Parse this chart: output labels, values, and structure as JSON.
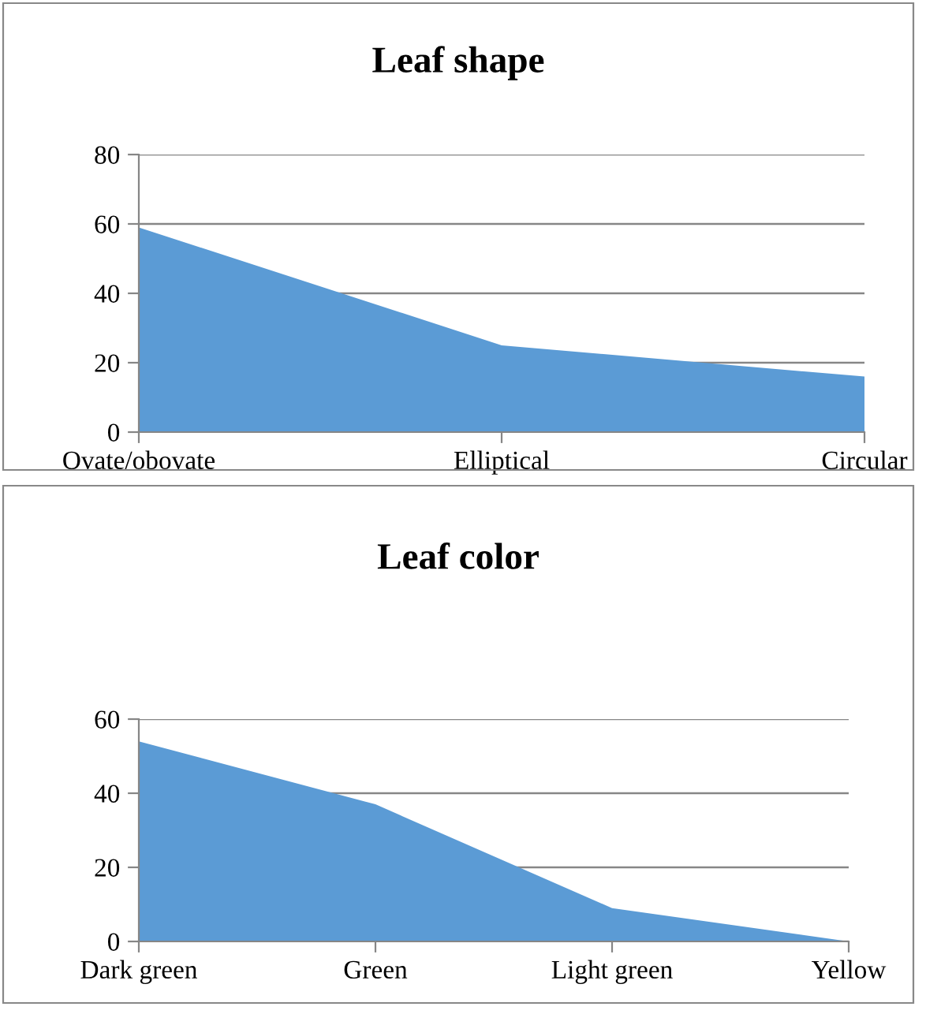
{
  "chart_data": [
    {
      "type": "area",
      "title": "Leaf shape",
      "categories": [
        "Ovate/obovate",
        "Elliptical",
        "Circular"
      ],
      "values": [
        59,
        25,
        16
      ],
      "color": "#5b9bd5",
      "ylim": [
        0,
        80
      ],
      "yticks": [
        0,
        20,
        40,
        60,
        80
      ],
      "grid": "y",
      "legend": false
    },
    {
      "type": "area",
      "title": "Leaf color",
      "categories": [
        "Dark green",
        "Green",
        "Light green",
        "Yellow"
      ],
      "values": [
        54,
        37,
        9,
        0
      ],
      "color": "#5b9bd5",
      "ylim": [
        0,
        60
      ],
      "yticks": [
        0,
        20,
        40,
        60
      ],
      "grid": "y",
      "legend": false
    }
  ]
}
